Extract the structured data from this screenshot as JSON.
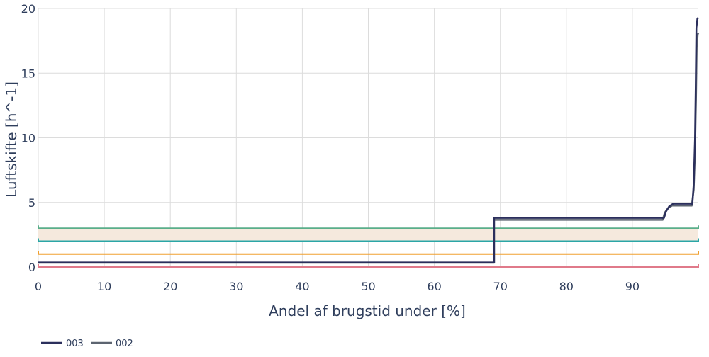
{
  "chart_data": {
    "type": "line",
    "xlabel": "Andel af brugstid under [%]",
    "ylabel": "Luftskifte [h^-1]",
    "xlim": [
      0,
      100
    ],
    "ylim": [
      0,
      20
    ],
    "x_ticks": [
      0,
      10,
      20,
      30,
      40,
      50,
      60,
      70,
      80,
      90
    ],
    "y_ticks": [
      0,
      5,
      10,
      15,
      20
    ],
    "grid": true,
    "legend_position": "bottom-left",
    "series": [
      {
        "name": "003",
        "color": "#2b2f5c",
        "points": [
          [
            0,
            0.35
          ],
          [
            69.05,
            0.35
          ],
          [
            69.05,
            3.8
          ],
          [
            94.8,
            3.8
          ],
          [
            95.1,
            4.3
          ],
          [
            95.6,
            4.7
          ],
          [
            96.2,
            4.9
          ],
          [
            99.1,
            4.9
          ],
          [
            99.3,
            6.5
          ],
          [
            99.5,
            10.0
          ],
          [
            99.6,
            14.0
          ],
          [
            99.7,
            18.5
          ],
          [
            99.85,
            19.2
          ],
          [
            100,
            19.3
          ]
        ]
      },
      {
        "name": "002",
        "color": "#5c6470",
        "points": [
          [
            0,
            0.33
          ],
          [
            69.05,
            0.33
          ],
          [
            69.05,
            3.65
          ],
          [
            94.6,
            3.65
          ],
          [
            94.9,
            4.2
          ],
          [
            95.4,
            4.55
          ],
          [
            96.0,
            4.75
          ],
          [
            99.0,
            4.75
          ],
          [
            99.3,
            6.0
          ],
          [
            99.5,
            9.0
          ],
          [
            99.65,
            13.0
          ],
          [
            99.75,
            17.0
          ],
          [
            99.9,
            18.0
          ],
          [
            100,
            18.1
          ]
        ]
      }
    ],
    "reference_lines": [
      {
        "y": 3.0,
        "color": "#5aae8a"
      },
      {
        "y": 2.0,
        "color": "#2aa6a6"
      },
      {
        "y": 1.0,
        "color": "#f0a030"
      },
      {
        "y": 0.0,
        "color": "#e07a8a"
      }
    ],
    "band": {
      "y0": 2.0,
      "y1": 3.0,
      "color": "#f5e9dd"
    }
  }
}
